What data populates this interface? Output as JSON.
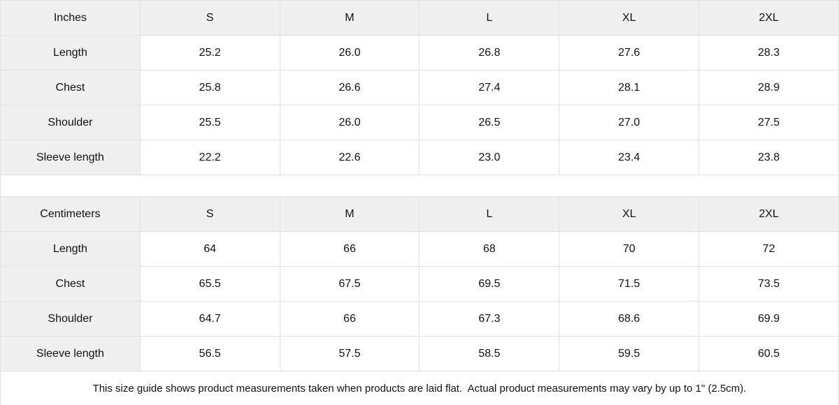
{
  "chart_data": [
    {
      "type": "table",
      "title": "Size guide (Inches)",
      "columns": [
        "Inches",
        "S",
        "M",
        "L",
        "XL",
        "2XL"
      ],
      "rows": [
        [
          "Length",
          "25.2",
          "26.0",
          "26.8",
          "27.6",
          "28.3"
        ],
        [
          "Chest",
          "25.8",
          "26.6",
          "27.4",
          "28.1",
          "28.9"
        ],
        [
          "Shoulder",
          "25.5",
          "26.0",
          "26.5",
          "27.0",
          "27.5"
        ],
        [
          "Sleeve length",
          "22.2",
          "22.6",
          "23.0",
          "23.4",
          "23.8"
        ]
      ]
    },
    {
      "type": "table",
      "title": "Size guide (Centimeters)",
      "columns": [
        "Centimeters",
        "S",
        "M",
        "L",
        "XL",
        "2XL"
      ],
      "rows": [
        [
          "Length",
          "64",
          "66",
          "68",
          "70",
          "72"
        ],
        [
          "Chest",
          "65.5",
          "67.5",
          "69.5",
          "71.5",
          "73.5"
        ],
        [
          "Shoulder",
          "64.7",
          "66",
          "67.3",
          "68.6",
          "69.9"
        ],
        [
          "Sleeve length",
          "56.5",
          "57.5",
          "58.5",
          "59.5",
          "60.5"
        ]
      ]
    }
  ],
  "footer": {
    "note": "This size guide shows product measurements taken when products are laid flat.  Actual product measurements may vary by up to 1\" (2.5cm)."
  },
  "colors": {
    "header_fill": "#f0f0f0",
    "border": "#e1e1e1",
    "text": "#111111",
    "background": "#ffffff"
  }
}
